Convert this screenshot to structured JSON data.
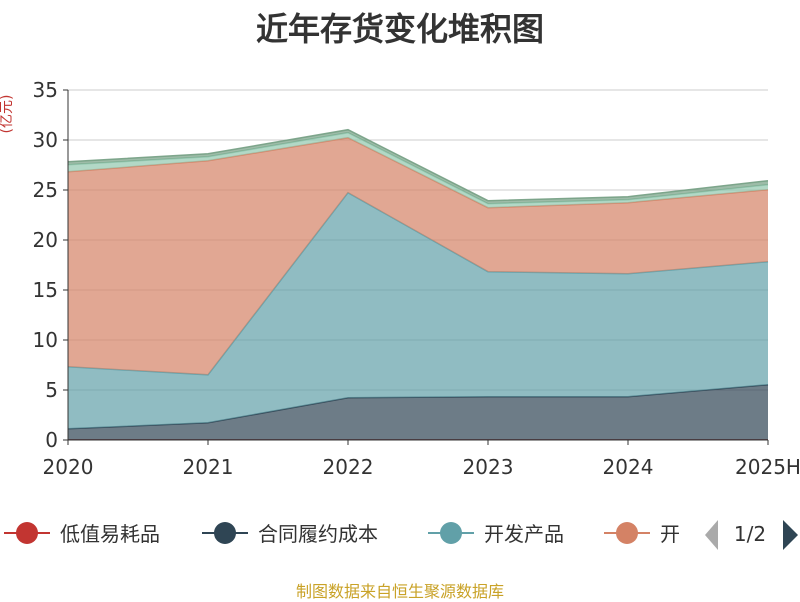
{
  "chart_data": {
    "type": "area",
    "stacked": true,
    "title": "近年存货变化堆积图",
    "ylabel": "(亿元)",
    "xlabel": "",
    "categories": [
      "2020",
      "2021",
      "2022",
      "2023",
      "2024",
      "2025H"
    ],
    "ylim": [
      0,
      35
    ],
    "yticks": [
      0,
      5,
      10,
      15,
      20,
      25,
      30,
      35
    ],
    "grid": true,
    "series": [
      {
        "name": "低值易耗品",
        "color": "#c23531",
        "values": [
          0.02,
          0.02,
          0.03,
          0.03,
          0.03,
          0.03
        ]
      },
      {
        "name": "合同履约成本",
        "color": "#2f4554",
        "values": [
          1.1,
          1.7,
          4.2,
          4.3,
          4.3,
          5.5
        ]
      },
      {
        "name": "开发产品",
        "color": "#61a0a8",
        "values": [
          6.2,
          4.8,
          20.5,
          12.5,
          12.3,
          12.3
        ]
      },
      {
        "name": "开",
        "color": "#d48265",
        "values": [
          19.5,
          21.4,
          5.5,
          6.4,
          7.1,
          7.2
        ]
      },
      {
        "name": "",
        "color": "#91c7ae",
        "values": [
          0.7,
          0.4,
          0.5,
          0.4,
          0.3,
          0.5
        ]
      },
      {
        "name": "",
        "color": "#749f83",
        "values": [
          0.3,
          0.3,
          0.3,
          0.3,
          0.3,
          0.4
        ]
      }
    ],
    "area_opacity": 0.7,
    "legend": {
      "position": "bottom",
      "page": "1/2"
    }
  },
  "source_note": "制图数据来自恒生聚源数据库",
  "icons": {
    "legend_prev": "triangle-left-icon",
    "legend_next": "triangle-right-icon"
  }
}
